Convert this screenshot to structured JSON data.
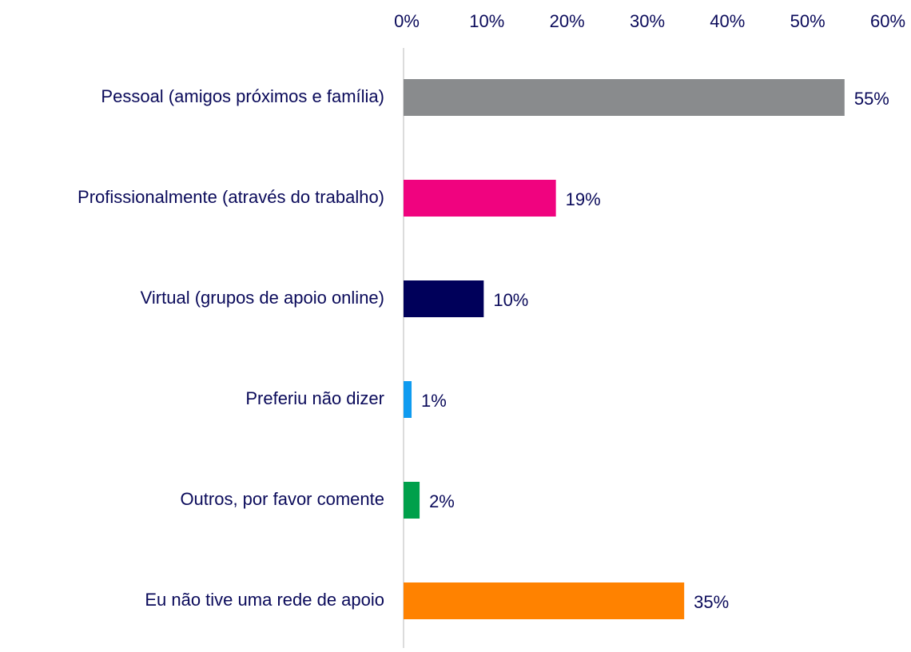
{
  "chart_data": {
    "type": "barh",
    "categories": [
      "Pessoal (amigos próximos e família)",
      "Profissionalmente (através do trabalho)",
      "Virtual (grupos de apoio online)",
      "Preferiu não dizer",
      "Outros, por favor comente",
      "Eu não tive uma rede de apoio"
    ],
    "values": [
      55,
      19,
      10,
      1,
      2,
      35
    ],
    "value_labels": [
      "55%",
      "19%",
      "10%",
      "1%",
      "2%",
      "35%"
    ],
    "colors": [
      "#898b8d",
      "#f0037f",
      "#00005a",
      "#0f9bf0",
      "#00a04b",
      "#ff8200"
    ],
    "xlim": [
      0,
      60
    ],
    "xticks": [
      {
        "value": 0,
        "label": "0%"
      },
      {
        "value": 10,
        "label": "10%"
      },
      {
        "value": 20,
        "label": "20%"
      },
      {
        "value": 30,
        "label": "30%"
      },
      {
        "value": 40,
        "label": "40%"
      },
      {
        "value": 50,
        "label": "50%"
      },
      {
        "value": 60,
        "label": "60%"
      }
    ]
  }
}
